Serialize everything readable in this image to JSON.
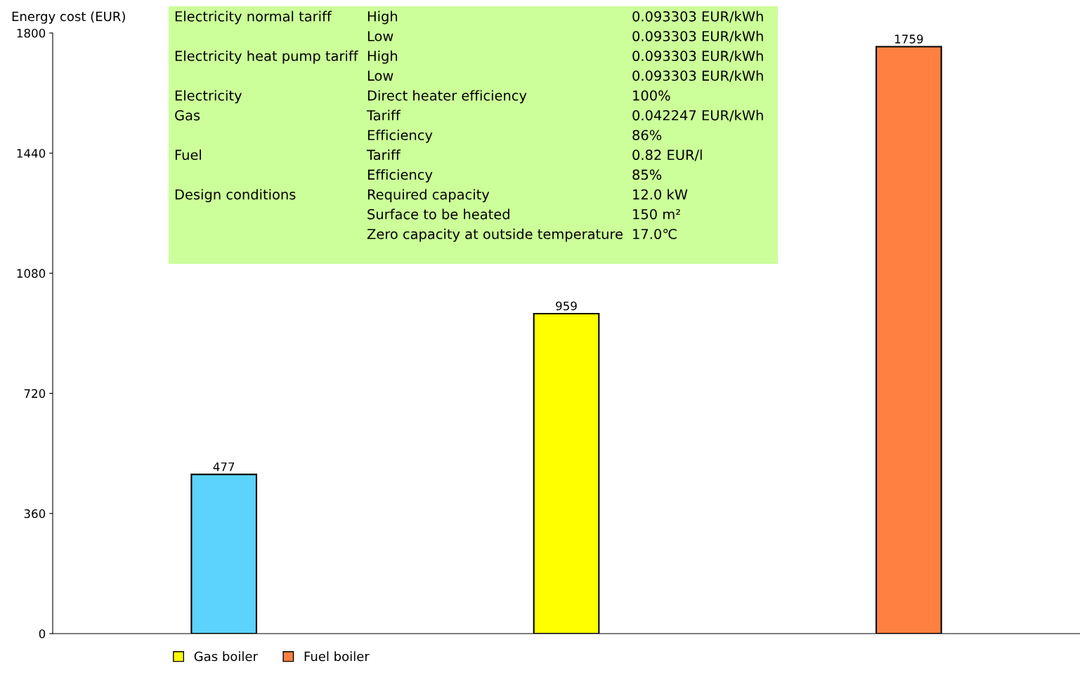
{
  "chart_data": {
    "type": "bar",
    "ylabel": "Energy cost (EUR)",
    "categories": [
      null,
      null,
      null
    ],
    "series": [
      {
        "color": "#5bd3fb",
        "values": [
          477,
          null,
          null
        ]
      },
      {
        "name": "Gas boiler",
        "color": "#ffff00",
        "values": [
          null,
          959,
          null
        ]
      },
      {
        "name": "Fuel boiler",
        "color": "#ff8040",
        "values": [
          null,
          null,
          1759
        ]
      }
    ],
    "ylim": [
      0,
      1800
    ],
    "yticks": [
      0,
      360,
      720,
      1080,
      1440,
      1800
    ],
    "data_labels": true,
    "grid": false,
    "legend": "bottom left",
    "annotations": [
      "Electricity normal tariff",
      "High",
      "0.093303 EUR/kWh",
      "Low",
      "0.093303 EUR/kWh",
      "Electricity heat pump tariff",
      "High",
      "0.093303 EUR/kWh",
      "Low",
      "0.093303 EUR/kWh",
      "Electricity",
      "Direct heater efficiency",
      "100%",
      "Gas",
      "Tariff",
      "0.042247 EUR/kWh",
      "Efficiency",
      "86%",
      "Fuel",
      "Tariff",
      "0.82 EUR/l",
      "Efficiency",
      "85%",
      "Design conditions",
      "Required capacity",
      "12.0 kW",
      "Surface to be heated",
      "150 m²",
      "Zero capacity at outside temperature",
      "17.0℃"
    ]
  }
}
